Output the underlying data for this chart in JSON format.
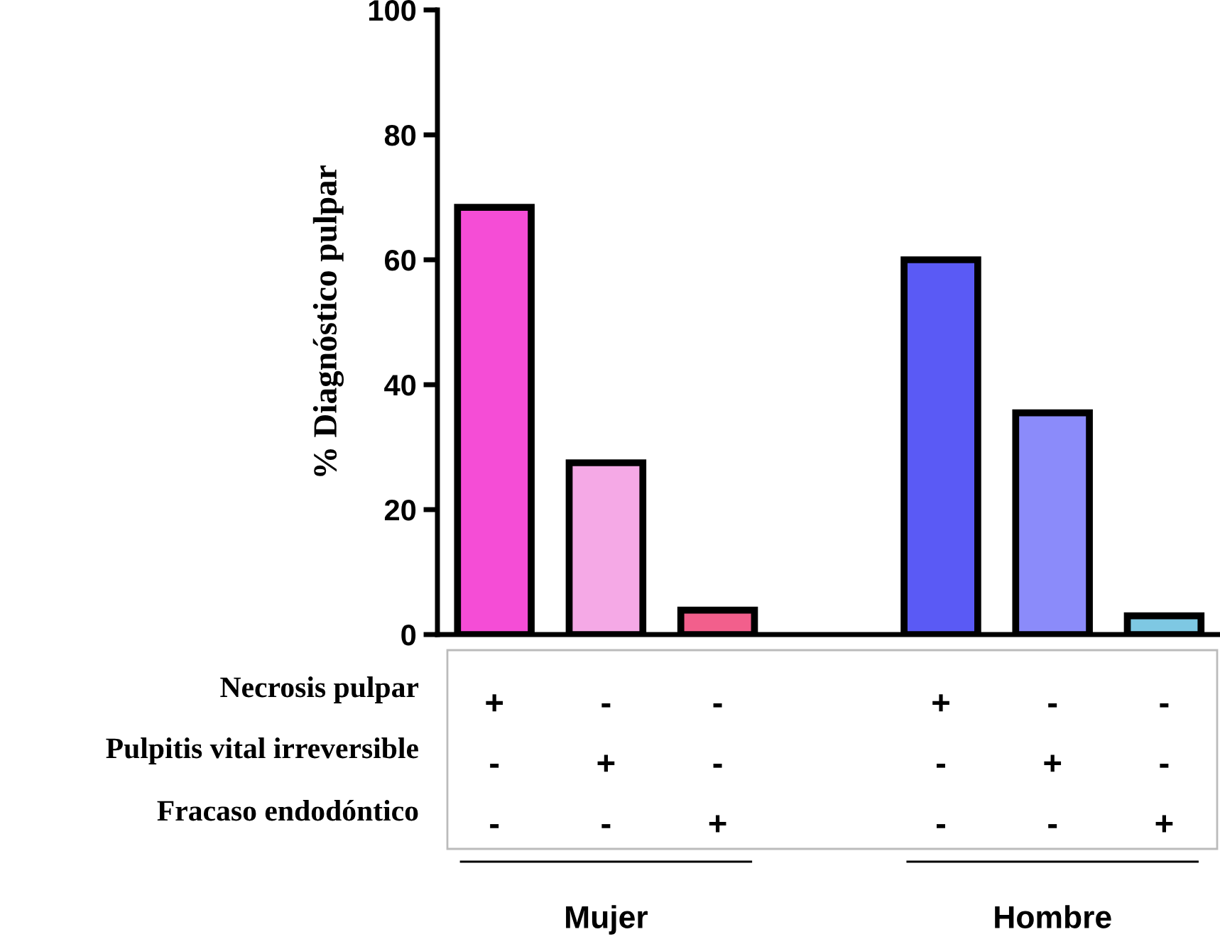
{
  "chart_data": {
    "type": "bar",
    "ylabel": "% Diagnóstico pulpar",
    "categories": [
      "+\n-\n-",
      "-\n+\n-",
      "-\n-\n+",
      null,
      "+\n-\n-",
      "-\n+\n-",
      "-\n-\n+"
    ],
    "values": [
      68.4,
      27.5,
      3.9,
      null,
      60,
      35.5,
      3
    ],
    "colors": [
      "#f54dd6",
      "#f5a9e6",
      "#f25f8c",
      "#ffffff",
      "#5a5af5",
      "#8b8bfa",
      "#7ec8e3"
    ],
    "ylim": [
      0,
      100
    ],
    "yticks": [
      0,
      20,
      40,
      60,
      80,
      100
    ],
    "grid": false,
    "legend": false,
    "annotations": [
      "Necrosis pulpar",
      "Pulpitis vital irreversible",
      "Fracaso endodóntico",
      "Mujer",
      "Hombre"
    ]
  }
}
